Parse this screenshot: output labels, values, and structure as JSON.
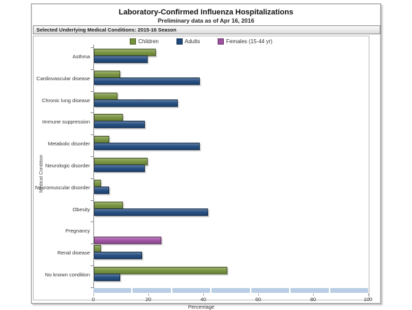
{
  "window": {
    "title": "Laboratory-Confirmed Influenza Hospitalizations",
    "subtitle": "Preliminary data as of Apr 16, 2016",
    "section_header": "Selected Underlying Medical Conditions: 2015-16 Season"
  },
  "colors": {
    "children": "#76923C",
    "adults": "#1F497D",
    "females": "#9E4FA0",
    "scrollbar": "#b9cde5"
  },
  "chart_data": {
    "type": "bar",
    "orientation": "horizontal",
    "title": "Laboratory-Confirmed Influenza Hospitalizations",
    "subtitle": "Preliminary data as of Apr 16, 2016",
    "xlabel": "Percentage",
    "ylabel": "Medical Condition",
    "xlim": [
      0,
      100
    ],
    "xticks": [
      0,
      20,
      40,
      60,
      80,
      100
    ],
    "legend_position": "top-center",
    "grid": false,
    "categories": [
      "Asthma",
      "Cardiovascular disease",
      "Chronic lung disease",
      "Immune suppression",
      "Metabolic disorder",
      "Neurologic disorder",
      "Neuromuscular disorder",
      "Obesity",
      "Pregnancy",
      "Renal disease",
      "No known condition"
    ],
    "series": [
      {
        "name": "Children",
        "color": "#76923C",
        "values": [
          22,
          9,
          8,
          10,
          5,
          19,
          2,
          10,
          null,
          2,
          48
        ]
      },
      {
        "name": "Adults",
        "color": "#1F497D",
        "values": [
          19,
          38,
          30,
          18,
          38,
          18,
          5,
          41,
          null,
          17,
          9
        ]
      },
      {
        "name": "Females (15-44 yr)",
        "color": "#9E4FA0",
        "values": [
          null,
          null,
          null,
          null,
          null,
          null,
          null,
          null,
          24,
          null,
          null
        ]
      }
    ]
  }
}
